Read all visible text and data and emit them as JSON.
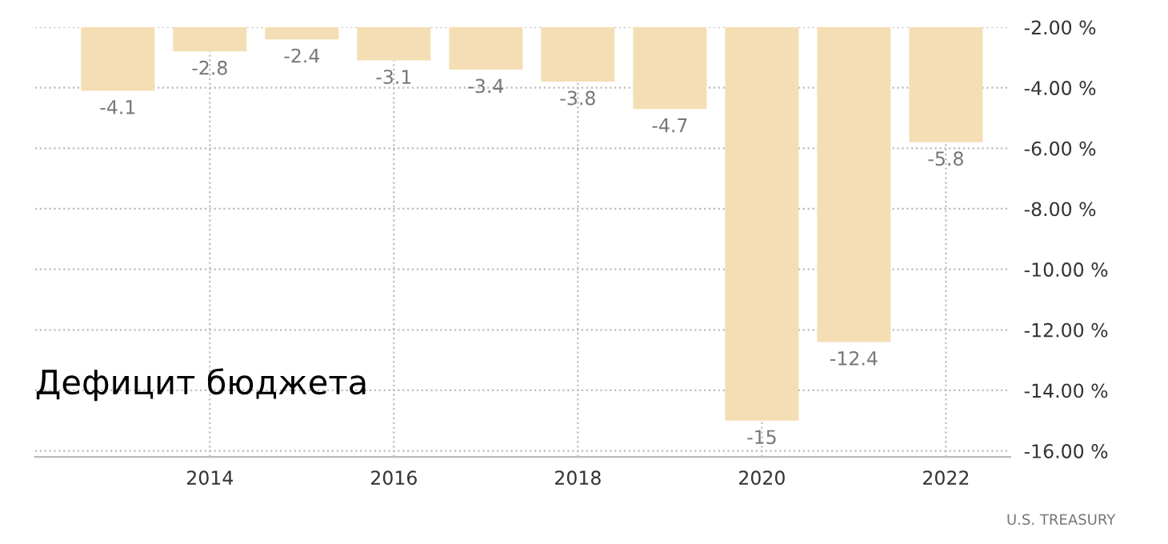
{
  "chart_data": {
    "type": "bar",
    "title": "Дефицит бюджета",
    "x": [
      2013,
      2014,
      2015,
      2016,
      2017,
      2018,
      2019,
      2020,
      2021,
      2022
    ],
    "values": [
      -4.1,
      -2.8,
      -2.4,
      -3.1,
      -3.4,
      -3.8,
      -4.7,
      -15,
      -12.4,
      -5.8
    ],
    "color": "#f5deb3",
    "data_labels": true,
    "xlim": [
      2012.1,
      2022.7
    ],
    "xticks": [
      2014,
      2016,
      2018,
      2020,
      2022
    ],
    "ylim": [
      -16.2,
      -2
    ],
    "yticks": [
      {
        "value": -2,
        "label": "-2.00 %"
      },
      {
        "value": -4,
        "label": "-4.00 %"
      },
      {
        "value": -6,
        "label": "-6.00 %"
      },
      {
        "value": -8,
        "label": "-8.00 %"
      },
      {
        "value": -10,
        "label": "-10.00 %"
      },
      {
        "value": -12,
        "label": "-12.00 %"
      },
      {
        "value": -14,
        "label": "-14.00 %"
      },
      {
        "value": -16,
        "label": "-16.00 %"
      }
    ],
    "grid": true,
    "legend": false,
    "annotations": [
      "U.S. TREASURY"
    ]
  }
}
